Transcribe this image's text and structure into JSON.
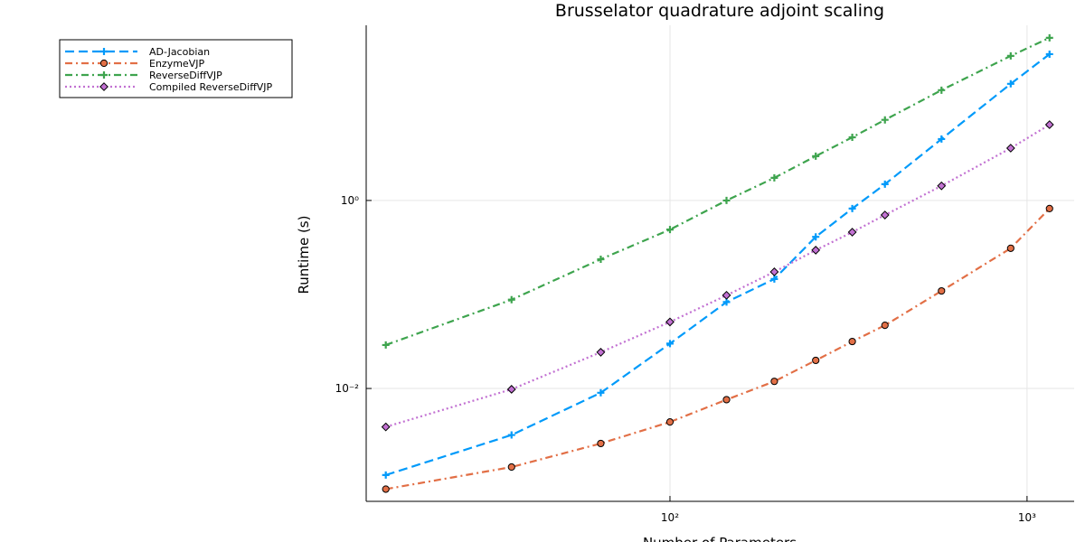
{
  "chart_data": {
    "type": "line",
    "title": "Brusselator quadrature adjoint scaling",
    "x_label": "Number of Parameters",
    "y_label": "Runtime (s)",
    "x_log": true,
    "y_log": true,
    "grid": true,
    "legend": "outside top left",
    "x": [
      16,
      36,
      64,
      100,
      144,
      196,
      256,
      324,
      400,
      576,
      900,
      1156
    ],
    "xlim": [
      14.1,
      1355
    ],
    "ylim": [
      0.00063,
      73
    ],
    "xticks": [
      {
        "value": 100,
        "label": "10²"
      },
      {
        "value": 1000,
        "label": "10³"
      }
    ],
    "yticks": [
      {
        "value": 0.01,
        "label": "10⁻²"
      },
      {
        "value": 1,
        "label": "10⁰"
      }
    ],
    "series": [
      {
        "name": "AD-Jacobian",
        "color": "#009afa",
        "dash": "dash",
        "marker": "cross",
        "values": [
          0.0012,
          0.0032,
          0.009,
          0.03,
          0.083,
          0.146,
          0.41,
          0.82,
          1.49,
          4.5,
          17.4,
          36
        ]
      },
      {
        "name": "EnzymeVJP",
        "color": "#e26f46",
        "dash": "dashdot",
        "marker": "circle",
        "values": [
          0.00085,
          0.00146,
          0.0026,
          0.0044,
          0.0076,
          0.0119,
          0.0199,
          0.0316,
          0.047,
          0.109,
          0.31,
          0.82
        ]
      },
      {
        "name": "ReverseDiffVJP",
        "color": "#3ea44e",
        "dash": "dashdot",
        "marker": "cross",
        "values": [
          0.029,
          0.088,
          0.237,
          0.49,
          1.0,
          1.74,
          2.96,
          4.7,
          7.2,
          14.9,
          34.5,
          53.7
        ]
      },
      {
        "name": "Compiled ReverseDiffVJP",
        "color": "#c271d2",
        "dash": "dot",
        "marker": "diamond",
        "values": [
          0.0039,
          0.0098,
          0.0243,
          0.051,
          0.098,
          0.174,
          0.296,
          0.46,
          0.7,
          1.43,
          3.6,
          6.4
        ]
      }
    ]
  }
}
